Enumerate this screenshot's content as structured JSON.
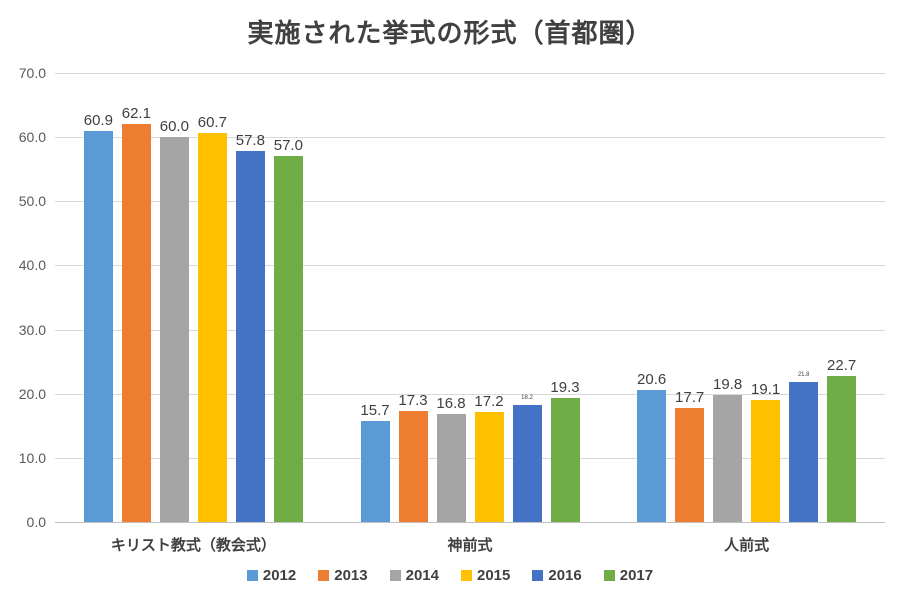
{
  "title": "実施された挙式の形式（首都圏）",
  "chart_data": {
    "type": "bar",
    "title": "実施された挙式の形式（首都圏）",
    "categories": [
      "キリスト教式（教会式）",
      "神前式",
      "人前式"
    ],
    "series": [
      {
        "name": "2012",
        "color": "#5B9BD5",
        "values": [
          60.9,
          15.7,
          20.6
        ]
      },
      {
        "name": "2013",
        "color": "#ED7D31",
        "values": [
          62.1,
          17.3,
          17.7
        ]
      },
      {
        "name": "2014",
        "color": "#A5A5A5",
        "values": [
          60.0,
          16.8,
          19.8
        ]
      },
      {
        "name": "2015",
        "color": "#FFC000",
        "values": [
          60.7,
          17.2,
          19.1
        ]
      },
      {
        "name": "2016",
        "color": "#4472C4",
        "values": [
          57.8,
          18.2,
          21.8
        ]
      },
      {
        "name": "2017",
        "color": "#70AD47",
        "values": [
          57.0,
          19.3,
          22.7
        ]
      }
    ],
    "xlabel": "",
    "ylabel": "",
    "ylim": [
      0,
      70
    ],
    "ytick_labels": [
      "0.0",
      "10.0",
      "20.0",
      "30.0",
      "40.0",
      "50.0",
      "60.0",
      "70.0"
    ],
    "value_label_decimals": 1,
    "value_labels": true,
    "small_value_labels": [
      {
        "category_index": 1,
        "series_index": 4
      },
      {
        "category_index": 2,
        "series_index": 4
      }
    ],
    "grid": true,
    "legend_position": "bottom",
    "colors": {
      "grid": "#D9D9D9",
      "axis": "#BFBFBF",
      "text": "#404040",
      "tick_text": "#595959"
    }
  }
}
